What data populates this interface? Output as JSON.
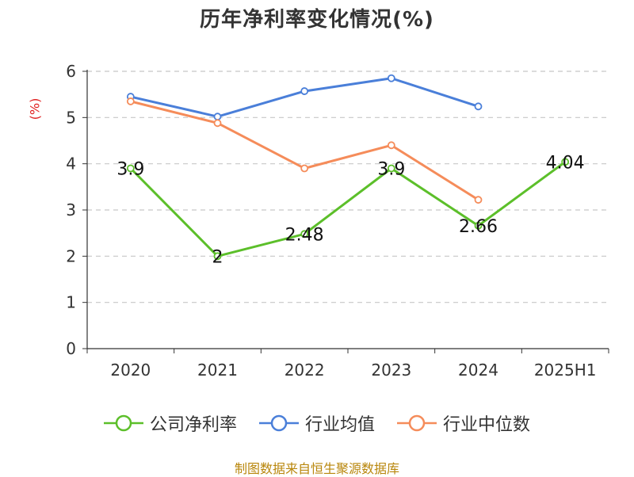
{
  "chart_data": {
    "type": "line",
    "title": "历年净利率变化情况(%)",
    "ylabel": "(%)",
    "xlabel": "",
    "categories": [
      "2020",
      "2021",
      "2022",
      "2023",
      "2024",
      "2025H1"
    ],
    "ylim": [
      0,
      6
    ],
    "yticks": [
      "0",
      "1",
      "2",
      "3",
      "4",
      "5",
      "6"
    ],
    "grid": true,
    "legend_position": "bottom",
    "series": [
      {
        "name": "公司净利率",
        "color": "#5cbf2a",
        "values": [
          3.9,
          2,
          2.48,
          3.9,
          2.66,
          4.04
        ],
        "labels": [
          "3.9",
          "2",
          "2.48",
          "3.9",
          "2.66",
          "4.04"
        ]
      },
      {
        "name": "行业均值",
        "color": "#4a7fd9",
        "values": [
          5.45,
          5.02,
          5.57,
          5.85,
          5.24,
          null
        ]
      },
      {
        "name": "行业中位数",
        "color": "#f58c5a",
        "values": [
          5.35,
          4.88,
          3.9,
          4.4,
          3.22,
          null
        ]
      }
    ]
  },
  "footer": {
    "source": "制图数据来自恒生聚源数据库"
  }
}
